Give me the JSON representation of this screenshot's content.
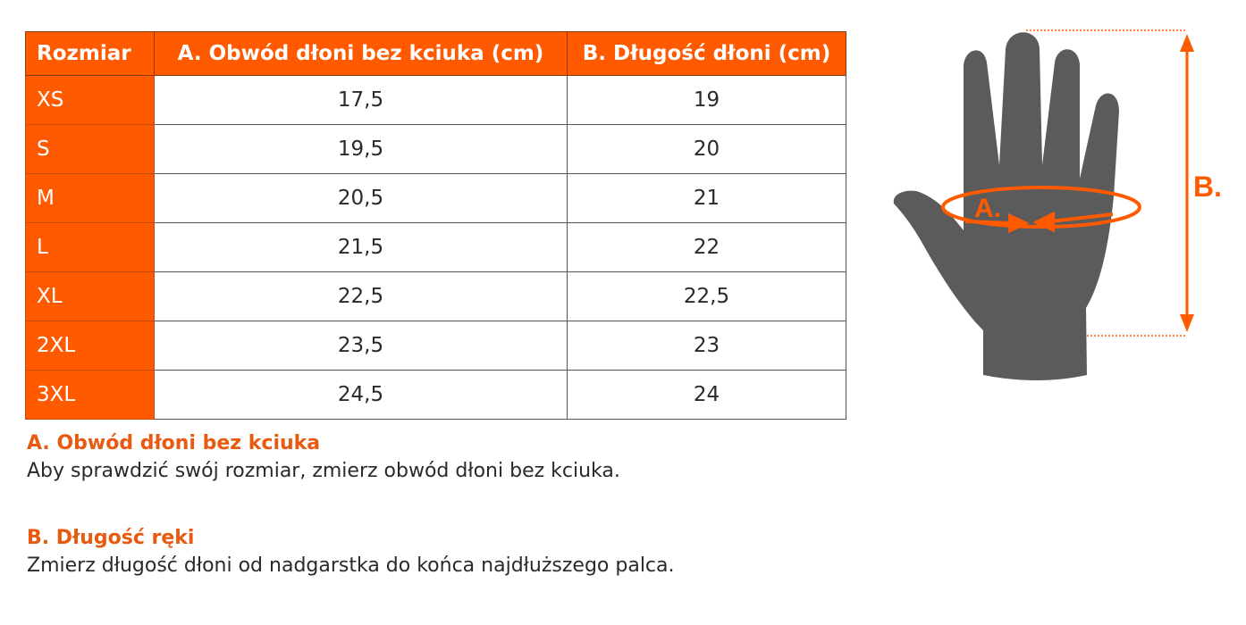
{
  "table": {
    "headers": [
      "Rozmiar",
      "A. Obwód dłoni bez kciuka (cm)",
      "B. Długość dłoni (cm)"
    ],
    "rows": [
      [
        "XS",
        "17,5",
        "19"
      ],
      [
        "S",
        "19,5",
        "20"
      ],
      [
        "M",
        "20,5",
        "21"
      ],
      [
        "L",
        "21,5",
        "22"
      ],
      [
        "XL",
        "22,5",
        "22,5"
      ],
      [
        "2XL",
        "23,5",
        "23"
      ],
      [
        "3XL",
        "24,5",
        "24"
      ]
    ]
  },
  "notes": [
    {
      "title": "A. Obwód dłoni bez kciuka",
      "text": "Aby sprawdzić swój rozmiar, zmierz obwód dłoni bez kciuka."
    },
    {
      "title": "B. Długość ręki",
      "text": "Zmierz długość dłoni od nadgarstka do końca najdłuższego palca."
    }
  ],
  "diagram": {
    "label_a": "A.",
    "label_b": "B.",
    "accent": "#ff5a00",
    "hand_color": "#5b5b5b"
  }
}
